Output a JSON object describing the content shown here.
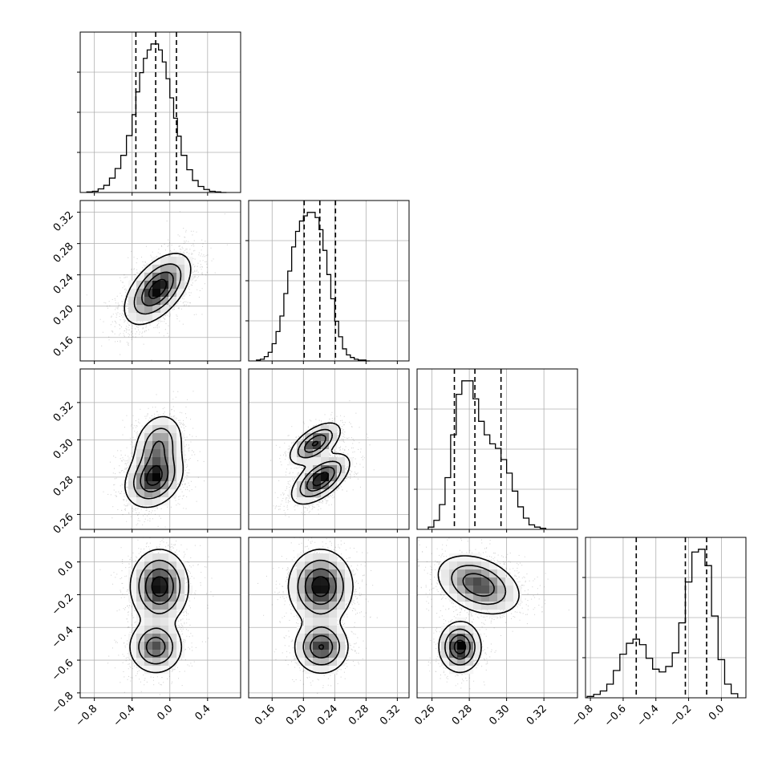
{
  "chart_data": {
    "type": "corner",
    "parameters": 4,
    "title": "",
    "grid": true,
    "axis_labels": [],
    "ticks": {
      "p0": [
        -0.8,
        -0.4,
        0.0,
        0.4
      ],
      "p1": [
        0.16,
        0.2,
        0.24,
        0.28,
        0.32
      ],
      "p2": [
        0.26,
        0.28,
        0.3,
        0.32
      ],
      "p3_bottom": [
        -0.8,
        -0.6,
        -0.4,
        -0.2,
        0.0
      ],
      "p3_left": [
        -0.8,
        -0.6,
        -0.4,
        -0.2,
        0.0
      ]
    },
    "tick_labels": {
      "p0": [
        "−0.8",
        "−0.4",
        "0.0",
        "0.4"
      ],
      "p1": [
        "0.16",
        "0.20",
        "0.24",
        "0.28",
        "0.32"
      ],
      "p2": [
        "0.26",
        "0.28",
        "0.30",
        "0.32"
      ],
      "p3": [
        "−0.8",
        "−0.6",
        "−0.4",
        "−0.2",
        "0.0"
      ]
    },
    "ranges": {
      "p0": [
        -0.95,
        0.75
      ],
      "p1": [
        0.13,
        0.335
      ],
      "p2": [
        0.252,
        0.338
      ],
      "p3": [
        -0.83,
        0.15
      ]
    },
    "marginals": [
      {
        "param": "p0",
        "quantiles": [
          -0.36,
          -0.15,
          0.07
        ],
        "bin_edges": [
          -0.88,
          -0.82,
          -0.76,
          -0.7,
          -0.64,
          -0.58,
          -0.52,
          -0.46,
          -0.4,
          -0.36,
          -0.32,
          -0.28,
          -0.24,
          -0.2,
          -0.16,
          -0.12,
          -0.08,
          -0.04,
          0.0,
          0.04,
          0.08,
          0.12,
          0.18,
          0.24,
          0.3,
          0.36,
          0.42,
          0.48,
          0.54,
          0.6
        ],
        "counts": [
          1,
          2,
          6,
          12,
          24,
          40,
          62,
          95,
          130,
          168,
          200,
          224,
          238,
          248,
          248,
          238,
          218,
          190,
          158,
          124,
          94,
          62,
          38,
          20,
          10,
          5,
          2,
          1,
          0
        ]
      },
      {
        "param": "p1",
        "quantiles": [
          0.201,
          0.221,
          0.241
        ],
        "bin_edges": [
          0.14,
          0.145,
          0.15,
          0.155,
          0.16,
          0.165,
          0.17,
          0.175,
          0.18,
          0.185,
          0.19,
          0.195,
          0.2,
          0.205,
          0.21,
          0.215,
          0.22,
          0.225,
          0.23,
          0.235,
          0.24,
          0.245,
          0.25,
          0.255,
          0.26,
          0.265,
          0.27,
          0.275,
          0.28,
          0.285
        ],
        "counts": [
          1,
          2,
          5,
          10,
          20,
          34,
          52,
          78,
          104,
          132,
          150,
          162,
          168,
          172,
          172,
          166,
          152,
          128,
          100,
          72,
          46,
          28,
          14,
          7,
          4,
          2,
          1,
          1,
          0
        ]
      },
      {
        "param": "p2",
        "quantiles": [
          0.272,
          0.283,
          0.297
        ],
        "bin_edges": [
          0.258,
          0.261,
          0.264,
          0.267,
          0.27,
          0.273,
          0.276,
          0.279,
          0.282,
          0.285,
          0.288,
          0.291,
          0.294,
          0.297,
          0.3,
          0.303,
          0.306,
          0.309,
          0.312,
          0.315,
          0.318,
          0.321
        ],
        "counts": [
          2,
          8,
          22,
          46,
          84,
          120,
          132,
          132,
          116,
          96,
          84,
          76,
          72,
          62,
          50,
          34,
          20,
          10,
          4,
          2,
          1
        ]
      },
      {
        "param": "p3",
        "quantiles": [
          -0.52,
          -0.22,
          -0.09
        ],
        "bin_edges": [
          -0.82,
          -0.78,
          -0.74,
          -0.7,
          -0.66,
          -0.62,
          -0.58,
          -0.54,
          -0.5,
          -0.46,
          -0.42,
          -0.38,
          -0.34,
          -0.3,
          -0.26,
          -0.22,
          -0.18,
          -0.14,
          -0.1,
          -0.06,
          -0.02,
          0.02,
          0.06,
          0.1
        ],
        "counts": [
          2,
          5,
          10,
          20,
          40,
          64,
          80,
          86,
          78,
          58,
          42,
          38,
          46,
          66,
          110,
          170,
          214,
          218,
          194,
          120,
          56,
          20,
          6
        ]
      }
    ],
    "joints": [
      {
        "x": "p0",
        "y": "p1",
        "modes": [
          {
            "cx": -0.13,
            "cy": 0.222,
            "sx": 0.17,
            "sy": 0.022,
            "rho": 0.55,
            "w": 1.0
          }
        ]
      },
      {
        "x": "p0",
        "y": "p2",
        "modes": [
          {
            "cx": -0.17,
            "cy": 0.279,
            "sx": 0.15,
            "sy": 0.0075,
            "rho": 0.25,
            "w": 0.6
          },
          {
            "cx": -0.12,
            "cy": 0.297,
            "sx": 0.13,
            "sy": 0.0085,
            "rho": 0.2,
            "w": 0.4
          }
        ]
      },
      {
        "x": "p1",
        "y": "p2",
        "modes": [
          {
            "cx": 0.222,
            "cy": 0.279,
            "sx": 0.018,
            "sy": 0.0065,
            "rho": 0.6,
            "w": 0.6
          },
          {
            "cx": 0.215,
            "cy": 0.298,
            "sx": 0.016,
            "sy": 0.0055,
            "rho": 0.6,
            "w": 0.4
          }
        ]
      },
      {
        "x": "p0",
        "y": "p3",
        "modes": [
          {
            "cx": -0.11,
            "cy": -0.15,
            "sx": 0.15,
            "sy": 0.11,
            "rho": 0.0,
            "w": 0.65
          },
          {
            "cx": -0.15,
            "cy": -0.52,
            "sx": 0.14,
            "sy": 0.08,
            "rho": 0.0,
            "w": 0.35
          }
        ]
      },
      {
        "x": "p1",
        "y": "p3",
        "modes": [
          {
            "cx": 0.222,
            "cy": -0.15,
            "sx": 0.02,
            "sy": 0.11,
            "rho": 0.0,
            "w": 0.65
          },
          {
            "cx": 0.223,
            "cy": -0.52,
            "sx": 0.017,
            "sy": 0.08,
            "rho": 0.0,
            "w": 0.35
          }
        ]
      },
      {
        "x": "p2",
        "y": "p3",
        "modes": [
          {
            "cx": 0.285,
            "cy": -0.14,
            "sx": 0.011,
            "sy": 0.09,
            "rho": -0.35,
            "w": 0.65
          },
          {
            "cx": 0.275,
            "cy": -0.52,
            "sx": 0.0055,
            "sy": 0.075,
            "rho": 0.0,
            "w": 0.35
          }
        ]
      }
    ]
  }
}
